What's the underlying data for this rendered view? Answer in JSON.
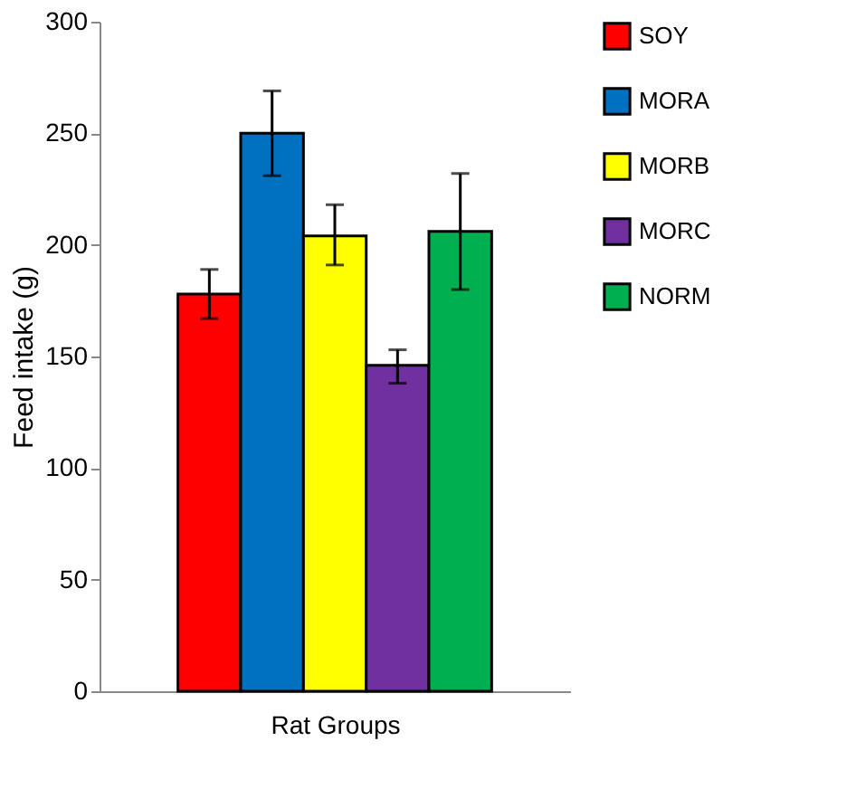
{
  "chart_data": {
    "type": "bar",
    "xlabel": "Rat Groups",
    "ylabel": "Feed intake (g)",
    "categories": [
      null
    ],
    "series": [
      {
        "name": "SOY",
        "color": "#ff0000",
        "values": [
          178
        ],
        "errors": [
          [
            167,
            189
          ]
        ]
      },
      {
        "name": "MORA",
        "color": "#0070c0",
        "values": [
          250
        ],
        "errors": [
          [
            231,
            269
          ]
        ]
      },
      {
        "name": "MORB",
        "color": "#ffff00",
        "values": [
          204
        ],
        "errors": [
          [
            191,
            218
          ]
        ]
      },
      {
        "name": "MORC",
        "color": "#7030a0",
        "values": [
          146
        ],
        "errors": [
          [
            138,
            153
          ]
        ]
      },
      {
        "name": "NORM",
        "color": "#00b050",
        "values": [
          206
        ],
        "errors": [
          [
            180,
            232
          ]
        ]
      }
    ],
    "ylim": [
      0,
      300
    ],
    "yticks": [
      0,
      50,
      100,
      150,
      200,
      250,
      300
    ],
    "grid": false,
    "legend": "right"
  }
}
